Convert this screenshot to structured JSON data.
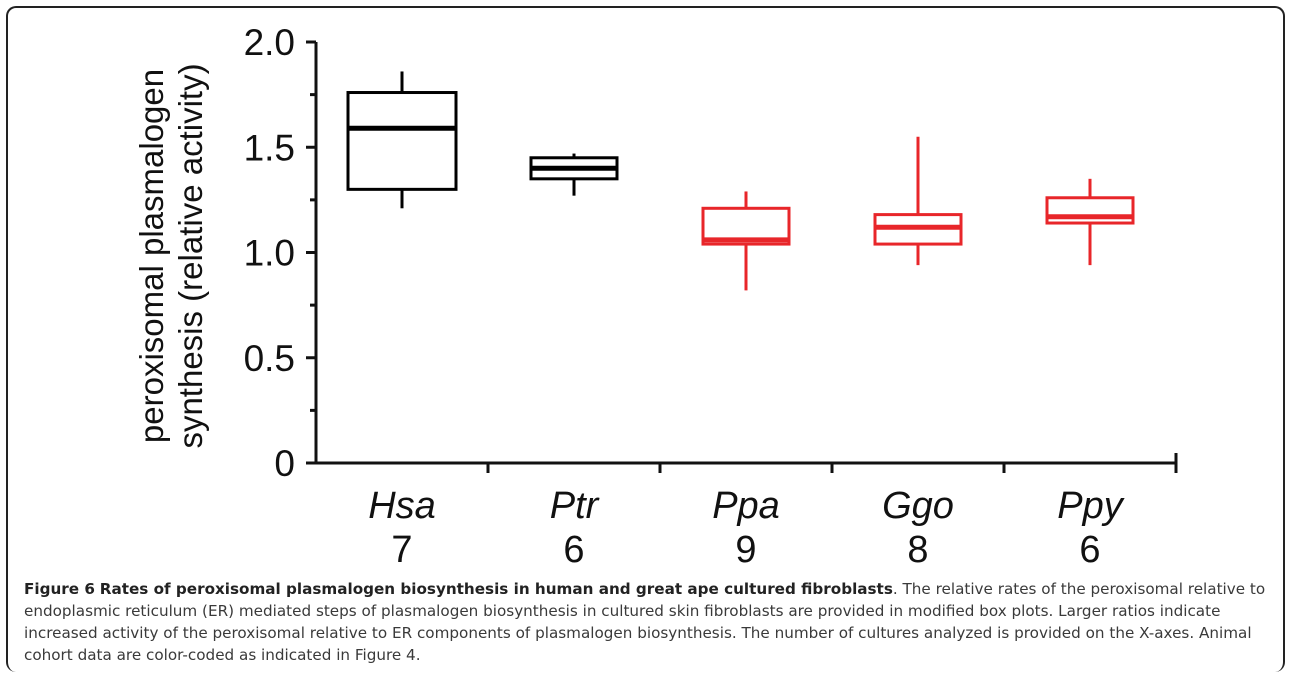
{
  "chart_data": {
    "type": "box",
    "ylabel_line1": "peroxisomal plasmalogen",
    "ylabel_line2": "synthesis (relative activity)",
    "ylim": [
      0,
      2.0
    ],
    "yticks": [
      {
        "value": 0,
        "label": "0"
      },
      {
        "value": 0.5,
        "label": "0.5"
      },
      {
        "value": 1.0,
        "label": "1.0"
      },
      {
        "value": 1.5,
        "label": "1.5"
      },
      {
        "value": 2.0,
        "label": "2.0"
      }
    ],
    "yminor": [
      0.25,
      0.75,
      1.25,
      1.75
    ],
    "categories": [
      {
        "name": "Hsa",
        "n": "7",
        "whisker_low": 1.21,
        "q1": 1.3,
        "median": 1.59,
        "q3": 1.76,
        "whisker_high": 1.86,
        "color": "#000000"
      },
      {
        "name": "Ptr",
        "n": "6",
        "whisker_low": 1.27,
        "q1": 1.35,
        "median": 1.4,
        "q3": 1.45,
        "whisker_high": 1.47,
        "color": "#000000"
      },
      {
        "name": "Ppa",
        "n": "9",
        "whisker_low": 0.82,
        "q1": 1.04,
        "median": 1.06,
        "q3": 1.21,
        "whisker_high": 1.29,
        "color": "#e8262a"
      },
      {
        "name": "Ggo",
        "n": "8",
        "whisker_low": 0.94,
        "q1": 1.04,
        "median": 1.12,
        "q3": 1.18,
        "whisker_high": 1.55,
        "color": "#e8262a"
      },
      {
        "name": "Ppy",
        "n": "6",
        "whisker_low": 0.94,
        "q1": 1.14,
        "median": 1.17,
        "q3": 1.26,
        "whisker_high": 1.35,
        "color": "#e8262a"
      }
    ]
  },
  "caption": {
    "figure_label": "Figure 6",
    "title": "Rates of peroxisomal plasmalogen biosynthesis in human and great ape cultured fibroblasts",
    "body": ". The relative rates of the peroxisomal relative to endoplasmic reticulum (ER) mediated steps of plasmalogen biosynthesis in cultured skin fibroblasts are provided in modified box plots. Larger ratios indicate increased activity of the peroxisomal relative to ER components of plasmalogen biosynthesis. The number of cultures analyzed is provided on the X-axes. Animal cohort data are color-coded as indicated in Figure 4."
  }
}
